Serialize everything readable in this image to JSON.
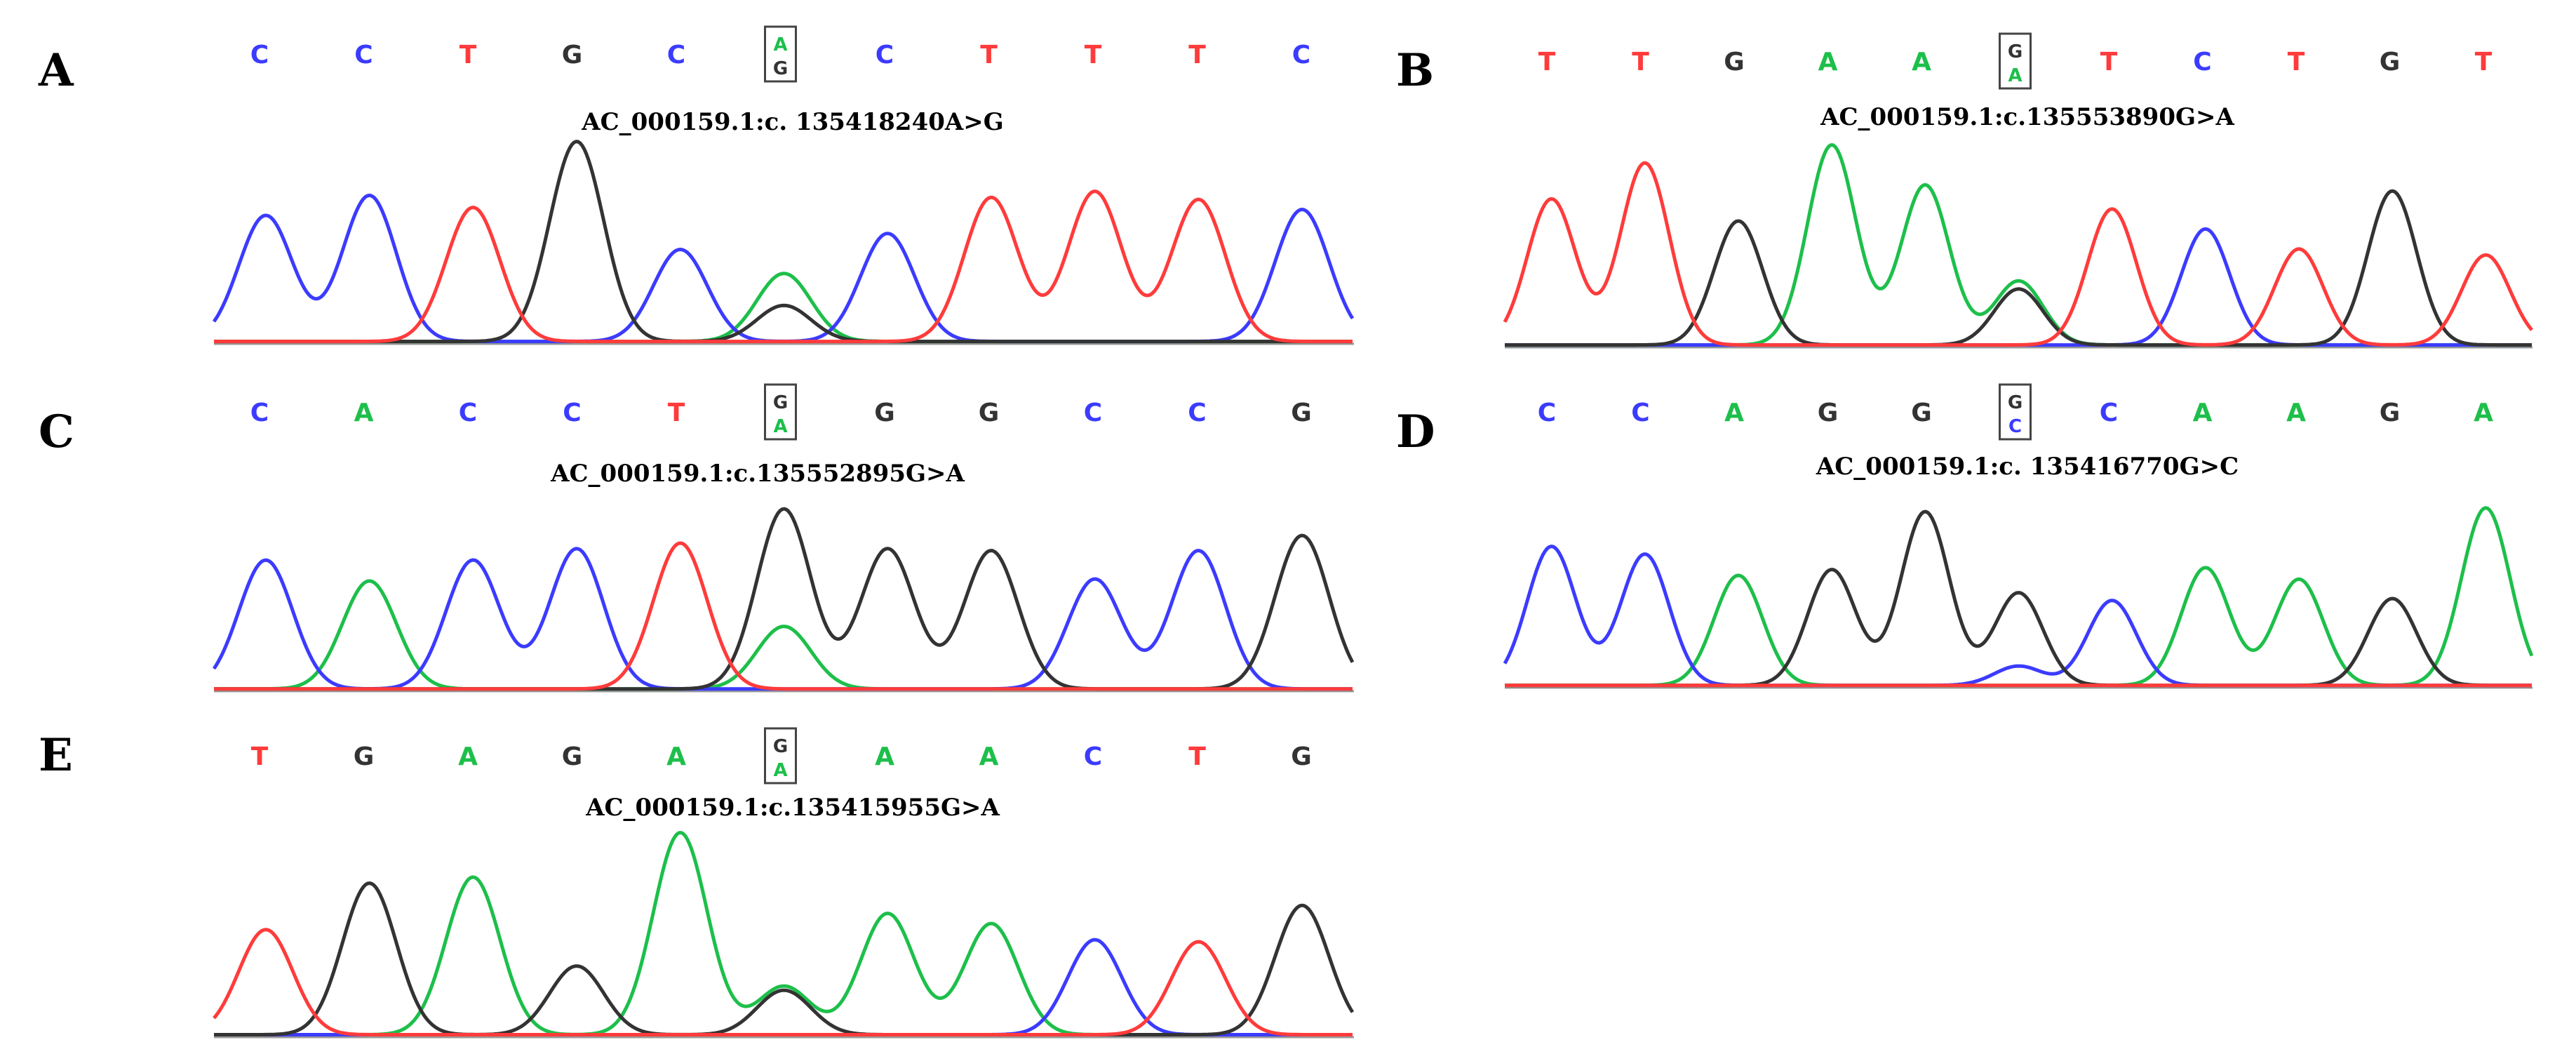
{
  "colors": {
    "A": "#1dbf4a",
    "C": "#3b3bff",
    "G": "#333333",
    "T": "#ff3b3b"
  },
  "panels": [
    {
      "letter": "A",
      "bases": [
        "C",
        "C",
        "T",
        "G",
        "C",
        "A/G",
        "C",
        "T",
        "T",
        "T",
        "C"
      ],
      "variant": "AC_000159.1:c. 135418240A>G",
      "peaks": [
        {
          "base": "C",
          "h": 0.63
        },
        {
          "base": "C",
          "h": 0.73
        },
        {
          "base": "T",
          "h": 0.67
        },
        {
          "base": "G",
          "h": 1.0
        },
        {
          "base": "C",
          "h": 0.46
        },
        {
          "base": "A",
          "h": 0.34,
          "minor": "G",
          "mh": 0.18
        },
        {
          "base": "C",
          "h": 0.54
        },
        {
          "base": "T",
          "h": 0.72
        },
        {
          "base": "T",
          "h": 0.75
        },
        {
          "base": "T",
          "h": 0.71
        },
        {
          "base": "C",
          "h": 0.66
        }
      ]
    },
    {
      "letter": "B",
      "bases": [
        "T",
        "T",
        "G",
        "A",
        "A",
        "G/A",
        "T",
        "C",
        "T",
        "G",
        "T"
      ],
      "variant": "AC_000159.1:c.135553890G>A",
      "peaks": [
        {
          "base": "T",
          "h": 0.73
        },
        {
          "base": "T",
          "h": 0.91
        },
        {
          "base": "G",
          "h": 0.62
        },
        {
          "base": "A",
          "h": 1.0
        },
        {
          "base": "A",
          "h": 0.8
        },
        {
          "base": "G",
          "h": 0.28,
          "minor": "A",
          "mh": 0.32
        },
        {
          "base": "T",
          "h": 0.68
        },
        {
          "base": "C",
          "h": 0.58
        },
        {
          "base": "T",
          "h": 0.48
        },
        {
          "base": "G",
          "h": 0.77
        },
        {
          "base": "T",
          "h": 0.45
        }
      ]
    },
    {
      "letter": "C",
      "bases": [
        "C",
        "A",
        "C",
        "C",
        "T",
        "G/A",
        "G",
        "G",
        "C",
        "C",
        "G"
      ],
      "variant": "AC_000159.1:c.135552895G>A",
      "peaks": [
        {
          "base": "C",
          "h": 0.68
        },
        {
          "base": "A",
          "h": 0.57
        },
        {
          "base": "C",
          "h": 0.68
        },
        {
          "base": "C",
          "h": 0.74
        },
        {
          "base": "T",
          "h": 0.77
        },
        {
          "base": "G",
          "h": 0.95,
          "minor": "A",
          "mh": 0.33
        },
        {
          "base": "G",
          "h": 0.74
        },
        {
          "base": "G",
          "h": 0.73
        },
        {
          "base": "C",
          "h": 0.58
        },
        {
          "base": "C",
          "h": 0.73
        },
        {
          "base": "G",
          "h": 0.81
        }
      ]
    },
    {
      "letter": "D",
      "bases": [
        "C",
        "C",
        "A",
        "G",
        "G",
        "G/C",
        "C",
        "A",
        "A",
        "G",
        "A"
      ],
      "variant": "AC_000159.1:c. 135416770G>C",
      "peaks": [
        {
          "base": "C",
          "h": 0.72
        },
        {
          "base": "C",
          "h": 0.68
        },
        {
          "base": "A",
          "h": 0.57
        },
        {
          "base": "G",
          "h": 0.6
        },
        {
          "base": "G",
          "h": 0.9
        },
        {
          "base": "G",
          "h": 0.48,
          "minor": "C",
          "mh": 0.1
        },
        {
          "base": "C",
          "h": 0.44
        },
        {
          "base": "A",
          "h": 0.61
        },
        {
          "base": "A",
          "h": 0.55
        },
        {
          "base": "G",
          "h": 0.45
        },
        {
          "base": "A",
          "h": 0.92
        }
      ]
    },
    {
      "letter": "E",
      "bases": [
        "T",
        "G",
        "A",
        "G",
        "A",
        "G/A",
        "A",
        "A",
        "C",
        "T",
        "G"
      ],
      "variant": "AC_000159.1:c.135415955G>A",
      "peaks": [
        {
          "base": "T",
          "h": 0.52
        },
        {
          "base": "G",
          "h": 0.75
        },
        {
          "base": "A",
          "h": 0.78
        },
        {
          "base": "G",
          "h": 0.34
        },
        {
          "base": "A",
          "h": 1.0
        },
        {
          "base": "G",
          "h": 0.22,
          "minor": "A",
          "mh": 0.24
        },
        {
          "base": "A",
          "h": 0.6
        },
        {
          "base": "A",
          "h": 0.55
        },
        {
          "base": "C",
          "h": 0.47
        },
        {
          "base": "T",
          "h": 0.46
        },
        {
          "base": "G",
          "h": 0.64
        }
      ]
    }
  ]
}
